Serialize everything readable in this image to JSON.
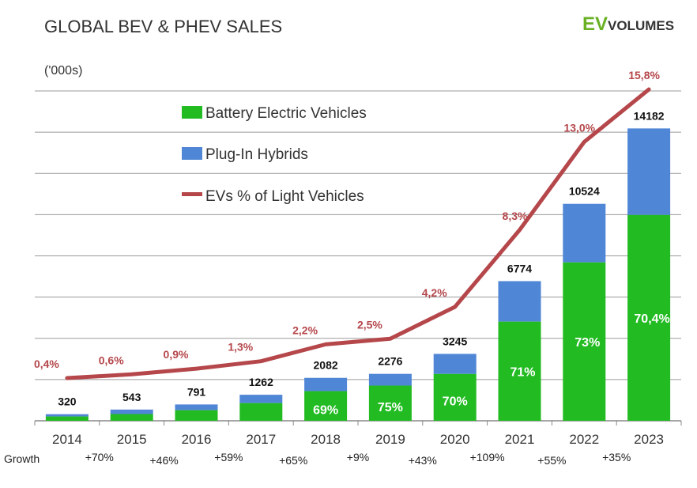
{
  "header": {
    "title": "GLOBAL BEV & PHEV SALES",
    "logo_text": "EV VOLUMES",
    "logo_ev": "EV",
    "logo_volumes": "VOLUMES"
  },
  "colors": {
    "bev": "#22bb22",
    "phev": "#4f86d6",
    "line": "#b5474b",
    "logo_green": "#6ab023"
  },
  "chart_data": {
    "type": "bar",
    "stacked": true,
    "title": "GLOBAL BEV & PHEV SALES",
    "ylabel": "('000s)",
    "ylim": [
      0,
      16000
    ],
    "grid": true,
    "legend_position": "top-left",
    "categories": [
      "2014",
      "2015",
      "2016",
      "2017",
      "2018",
      "2019",
      "2020",
      "2021",
      "2022",
      "2023"
    ],
    "totals": [
      320,
      543,
      791,
      1262,
      2082,
      2276,
      3245,
      6774,
      10524,
      14182
    ],
    "bev_share_pct": [
      65,
      60,
      65,
      68,
      69,
      75,
      70,
      71,
      73,
      70.4
    ],
    "bev_share_labels": [
      "",
      "",
      "",
      "",
      "69%",
      "75%",
      "70%",
      "71%",
      "73%",
      "70,4%"
    ],
    "series": [
      {
        "name": "Battery Electric Vehicles",
        "type": "bar"
      },
      {
        "name": "Plug-In Hybrids",
        "type": "bar"
      },
      {
        "name": "EVs % of Light Vehicles",
        "type": "line",
        "values": [
          0.4,
          0.6,
          0.9,
          1.3,
          2.2,
          2.5,
          4.2,
          8.3,
          13.0,
          15.8
        ],
        "labels": [
          "0,4%",
          "0,6%",
          "0,9%",
          "1,3%",
          "2,2%",
          "2,5%",
          "4,2%",
          "8,3%",
          "13,0%",
          "15,8%"
        ]
      }
    ],
    "growth_label": "Growth",
    "growth": [
      "+70%",
      "+46%",
      "+59%",
      "+65%",
      "+9%",
      "+43%",
      "+109%",
      "+55%",
      "+35%"
    ]
  }
}
